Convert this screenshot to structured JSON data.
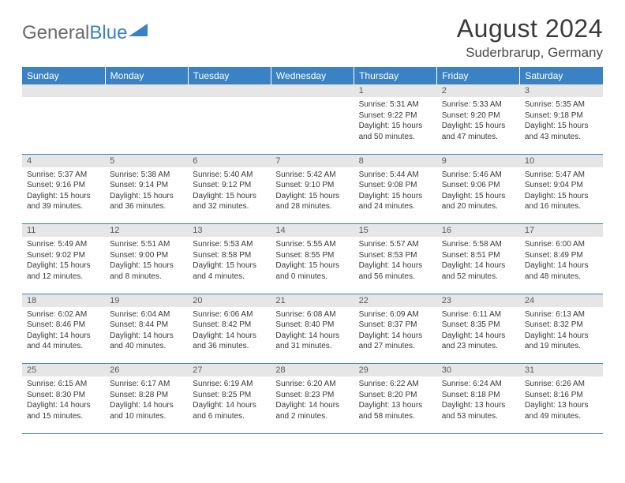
{
  "logo": {
    "text_gray": "General",
    "text_blue": "Blue",
    "shape_color": "#3b82c4"
  },
  "title": "August 2024",
  "location": "Suderbrarup, Germany",
  "header_bg": "#3b82c4",
  "header_text_color": "#ffffff",
  "daynum_bg": "#e6e6e6",
  "border_color": "#3b82c4",
  "dayNames": [
    "Sunday",
    "Monday",
    "Tuesday",
    "Wednesday",
    "Thursday",
    "Friday",
    "Saturday"
  ],
  "weeks": [
    [
      null,
      null,
      null,
      null,
      {
        "n": "1",
        "sr": "5:31 AM",
        "ss": "9:22 PM",
        "dl": "15 hours and 50 minutes."
      },
      {
        "n": "2",
        "sr": "5:33 AM",
        "ss": "9:20 PM",
        "dl": "15 hours and 47 minutes."
      },
      {
        "n": "3",
        "sr": "5:35 AM",
        "ss": "9:18 PM",
        "dl": "15 hours and 43 minutes."
      }
    ],
    [
      {
        "n": "4",
        "sr": "5:37 AM",
        "ss": "9:16 PM",
        "dl": "15 hours and 39 minutes."
      },
      {
        "n": "5",
        "sr": "5:38 AM",
        "ss": "9:14 PM",
        "dl": "15 hours and 36 minutes."
      },
      {
        "n": "6",
        "sr": "5:40 AM",
        "ss": "9:12 PM",
        "dl": "15 hours and 32 minutes."
      },
      {
        "n": "7",
        "sr": "5:42 AM",
        "ss": "9:10 PM",
        "dl": "15 hours and 28 minutes."
      },
      {
        "n": "8",
        "sr": "5:44 AM",
        "ss": "9:08 PM",
        "dl": "15 hours and 24 minutes."
      },
      {
        "n": "9",
        "sr": "5:46 AM",
        "ss": "9:06 PM",
        "dl": "15 hours and 20 minutes."
      },
      {
        "n": "10",
        "sr": "5:47 AM",
        "ss": "9:04 PM",
        "dl": "15 hours and 16 minutes."
      }
    ],
    [
      {
        "n": "11",
        "sr": "5:49 AM",
        "ss": "9:02 PM",
        "dl": "15 hours and 12 minutes."
      },
      {
        "n": "12",
        "sr": "5:51 AM",
        "ss": "9:00 PM",
        "dl": "15 hours and 8 minutes."
      },
      {
        "n": "13",
        "sr": "5:53 AM",
        "ss": "8:58 PM",
        "dl": "15 hours and 4 minutes."
      },
      {
        "n": "14",
        "sr": "5:55 AM",
        "ss": "8:55 PM",
        "dl": "15 hours and 0 minutes."
      },
      {
        "n": "15",
        "sr": "5:57 AM",
        "ss": "8:53 PM",
        "dl": "14 hours and 56 minutes."
      },
      {
        "n": "16",
        "sr": "5:58 AM",
        "ss": "8:51 PM",
        "dl": "14 hours and 52 minutes."
      },
      {
        "n": "17",
        "sr": "6:00 AM",
        "ss": "8:49 PM",
        "dl": "14 hours and 48 minutes."
      }
    ],
    [
      {
        "n": "18",
        "sr": "6:02 AM",
        "ss": "8:46 PM",
        "dl": "14 hours and 44 minutes."
      },
      {
        "n": "19",
        "sr": "6:04 AM",
        "ss": "8:44 PM",
        "dl": "14 hours and 40 minutes."
      },
      {
        "n": "20",
        "sr": "6:06 AM",
        "ss": "8:42 PM",
        "dl": "14 hours and 36 minutes."
      },
      {
        "n": "21",
        "sr": "6:08 AM",
        "ss": "8:40 PM",
        "dl": "14 hours and 31 minutes."
      },
      {
        "n": "22",
        "sr": "6:09 AM",
        "ss": "8:37 PM",
        "dl": "14 hours and 27 minutes."
      },
      {
        "n": "23",
        "sr": "6:11 AM",
        "ss": "8:35 PM",
        "dl": "14 hours and 23 minutes."
      },
      {
        "n": "24",
        "sr": "6:13 AM",
        "ss": "8:32 PM",
        "dl": "14 hours and 19 minutes."
      }
    ],
    [
      {
        "n": "25",
        "sr": "6:15 AM",
        "ss": "8:30 PM",
        "dl": "14 hours and 15 minutes."
      },
      {
        "n": "26",
        "sr": "6:17 AM",
        "ss": "8:28 PM",
        "dl": "14 hours and 10 minutes."
      },
      {
        "n": "27",
        "sr": "6:19 AM",
        "ss": "8:25 PM",
        "dl": "14 hours and 6 minutes."
      },
      {
        "n": "28",
        "sr": "6:20 AM",
        "ss": "8:23 PM",
        "dl": "14 hours and 2 minutes."
      },
      {
        "n": "29",
        "sr": "6:22 AM",
        "ss": "8:20 PM",
        "dl": "13 hours and 58 minutes."
      },
      {
        "n": "30",
        "sr": "6:24 AM",
        "ss": "8:18 PM",
        "dl": "13 hours and 53 minutes."
      },
      {
        "n": "31",
        "sr": "6:26 AM",
        "ss": "8:16 PM",
        "dl": "13 hours and 49 minutes."
      }
    ]
  ],
  "labels": {
    "sunrise": "Sunrise:",
    "sunset": "Sunset:",
    "daylight": "Daylight:"
  }
}
